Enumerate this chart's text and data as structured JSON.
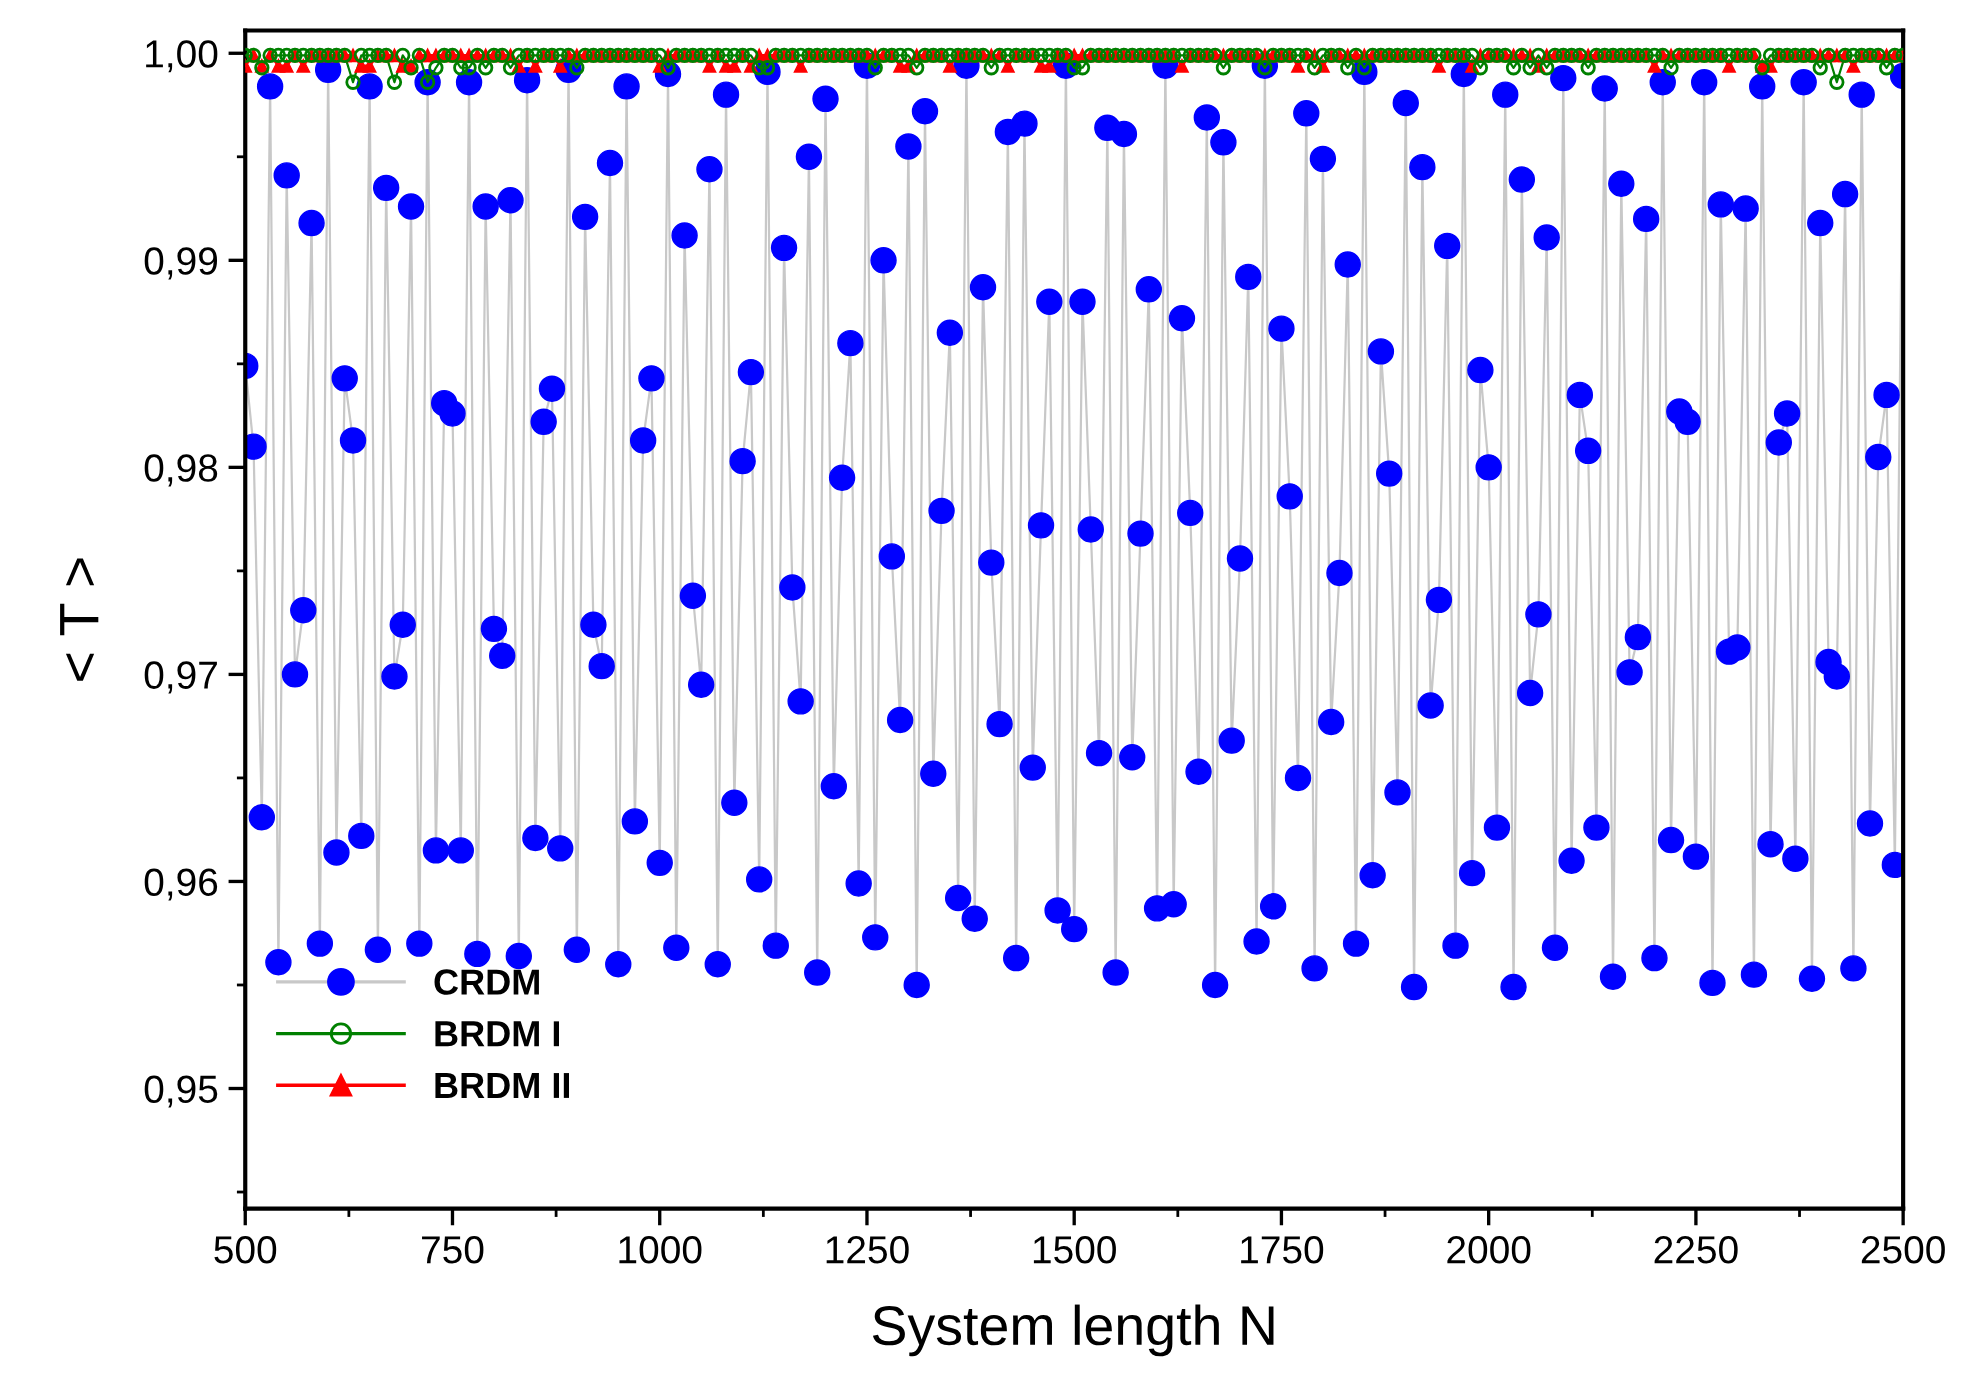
{
  "chart_data": {
    "type": "line",
    "xlabel": "System length N",
    "ylabel": "< T >",
    "x": [
      500,
      510,
      520,
      530,
      540,
      550,
      560,
      570,
      580,
      590,
      600,
      610,
      620,
      630,
      640,
      650,
      660,
      670,
      680,
      690,
      700,
      710,
      720,
      730,
      740,
      750,
      760,
      770,
      780,
      790,
      800,
      810,
      820,
      830,
      840,
      850,
      860,
      870,
      880,
      890,
      900,
      910,
      920,
      930,
      940,
      950,
      960,
      970,
      980,
      990,
      1000,
      1010,
      1020,
      1030,
      1040,
      1050,
      1060,
      1070,
      1080,
      1090,
      1100,
      1110,
      1120,
      1130,
      1140,
      1150,
      1160,
      1170,
      1180,
      1190,
      1200,
      1210,
      1220,
      1230,
      1240,
      1250,
      1260,
      1270,
      1280,
      1290,
      1300,
      1310,
      1320,
      1330,
      1340,
      1350,
      1360,
      1370,
      1380,
      1390,
      1400,
      1410,
      1420,
      1430,
      1440,
      1450,
      1460,
      1470,
      1480,
      1490,
      1500,
      1510,
      1520,
      1530,
      1540,
      1550,
      1560,
      1570,
      1580,
      1590,
      1600,
      1610,
      1620,
      1630,
      1640,
      1650,
      1660,
      1670,
      1680,
      1690,
      1700,
      1710,
      1720,
      1730,
      1740,
      1750,
      1760,
      1770,
      1780,
      1790,
      1800,
      1810,
      1820,
      1830,
      1840,
      1850,
      1860,
      1870,
      1880,
      1890,
      1900,
      1910,
      1920,
      1930,
      1940,
      1950,
      1960,
      1970,
      1980,
      1990,
      2000,
      2010,
      2020,
      2030,
      2040,
      2050,
      2060,
      2070,
      2080,
      2090,
      2100,
      2110,
      2120,
      2130,
      2140,
      2150,
      2160,
      2170,
      2180,
      2190,
      2200,
      2210,
      2220,
      2230,
      2240,
      2250,
      2260,
      2270,
      2280,
      2290,
      2300,
      2310,
      2320,
      2330,
      2340,
      2350,
      2360,
      2370,
      2380,
      2390,
      2400,
      2410,
      2420,
      2430,
      2440,
      2450,
      2460,
      2470,
      2480,
      2490,
      2500
    ],
    "xlim": [
      500,
      2500
    ],
    "xticks": [
      500,
      750,
      1000,
      1250,
      1500,
      1750,
      2000,
      2250,
      2500
    ],
    "ylim": [
      0.9442,
      1.0011
    ],
    "yticks": [
      {
        "value": 0.95,
        "label": "0,95"
      },
      {
        "value": 0.96,
        "label": "0,96"
      },
      {
        "value": 0.97,
        "label": "0,97"
      },
      {
        "value": 0.98,
        "label": "0,98"
      },
      {
        "value": 0.99,
        "label": "0,99"
      },
      {
        "value": 1.0,
        "label": "1,00"
      }
    ],
    "legend": "bottom left",
    "series": [
      {
        "name": "CRDM",
        "color": "#0000ff",
        "marker": "circle",
        "values": [
          0.9849,
          0.981,
          0.9631,
          0.9984,
          0.9561,
          0.9941,
          0.97,
          0.9731,
          0.9918,
          0.957,
          0.9992,
          0.9614,
          0.9843,
          0.9813,
          0.9622,
          0.9984,
          0.9567,
          0.9935,
          0.9699,
          0.9724,
          0.9926,
          0.957,
          0.9986,
          0.9615,
          0.9831,
          0.9826,
          0.9615,
          0.9986,
          0.9565,
          0.9926,
          0.9722,
          0.9709,
          0.9929,
          0.9564,
          0.9987,
          0.9621,
          0.9822,
          0.9838,
          0.9616,
          0.9992,
          0.9567,
          0.9921,
          0.9724,
          0.9704,
          0.9947,
          0.956,
          0.9984,
          0.9629,
          0.9813,
          0.9843,
          0.9609,
          0.999,
          0.9568,
          0.9912,
          0.9738,
          0.9695,
          0.9944,
          0.956,
          0.998,
          0.9638,
          0.9803,
          0.9846,
          0.9601,
          0.9991,
          0.9569,
          0.9906,
          0.9742,
          0.9687,
          0.995,
          0.9556,
          0.9978,
          0.9646,
          0.9795,
          0.986,
          0.9599,
          0.9994,
          0.9573,
          0.99,
          0.9757,
          0.9678,
          0.9955,
          0.955,
          0.9972,
          0.9652,
          0.9779,
          0.9865,
          0.9592,
          0.9994,
          0.9582,
          0.9887,
          0.9754,
          0.9676,
          0.9962,
          0.9563,
          0.9966,
          0.9655,
          0.9772,
          0.988,
          0.9586,
          0.9994,
          0.9577,
          0.988,
          0.977,
          0.9662,
          0.9964,
          0.9556,
          0.9961,
          0.966,
          0.9768,
          0.9886,
          0.9587,
          0.9994,
          0.9589,
          0.9872,
          0.9778,
          0.9653,
          0.9969,
          0.955,
          0.9957,
          0.9668,
          0.9756,
          0.9892,
          0.9571,
          0.9994,
          0.9588,
          0.9867,
          0.9786,
          0.965,
          0.9971,
          0.9558,
          0.9949,
          0.9677,
          0.9749,
          0.9898,
          0.957,
          0.9991,
          0.9603,
          0.9856,
          0.9797,
          0.9643,
          0.9976,
          0.9549,
          0.9945,
          0.9685,
          0.9736,
          0.9907,
          0.9569,
          0.999,
          0.9604,
          0.9847,
          0.98,
          0.9626,
          0.998,
          0.9549,
          0.9939,
          0.9691,
          0.9729,
          0.9911,
          0.9568,
          0.9988,
          0.961,
          0.9835,
          0.9808,
          0.9626,
          0.9983,
          0.9554,
          0.9937,
          0.9701,
          0.9718,
          0.992,
          0.9563,
          0.9986,
          0.962,
          0.9827,
          0.9822,
          0.9612,
          0.9986,
          0.9551,
          0.9927,
          0.9711,
          0.9713,
          0.9925,
          0.9555,
          0.9984,
          0.9618,
          0.9812,
          0.9826,
          0.9611,
          0.9986,
          0.9553,
          0.9918,
          0.9706,
          0.9699,
          0.9932,
          0.9558,
          0.998,
          0.9628,
          0.9805,
          0.9835,
          0.9608,
          0.9989
        ]
      },
      {
        "name": "BRDM I",
        "color": "#008000",
        "marker": "open circle",
        "values": [
          0.9999,
          0.9999,
          0.9993,
          0.9999,
          0.9999,
          0.9999,
          0.9999,
          0.9999,
          0.9999,
          0.9999,
          0.9999,
          0.9999,
          0.9999,
          0.9986,
          0.9999,
          0.9999,
          0.9999,
          0.9999,
          0.9986,
          0.9999,
          0.9993,
          0.9999,
          0.9986,
          0.9993,
          0.9999,
          0.9999,
          0.9993,
          0.9993,
          0.9999,
          0.9993,
          0.9999,
          0.9999,
          0.9993,
          0.9999,
          0.9999,
          0.9999,
          0.9999,
          0.9999,
          0.9999,
          0.9999,
          0.9993,
          0.9999,
          0.9999,
          0.9999,
          0.9999,
          0.9999,
          0.9999,
          0.9999,
          0.9999,
          0.9999,
          0.9999,
          0.9993,
          0.9999,
          0.9999,
          0.9999,
          0.9999,
          0.9999,
          0.9999,
          0.9999,
          0.9999,
          0.9999,
          0.9999,
          0.9993,
          0.9993,
          0.9999,
          0.9999,
          0.9999,
          0.9999,
          0.9999,
          0.9999,
          0.9999,
          0.9999,
          0.9999,
          0.9999,
          0.9999,
          0.9999,
          0.9993,
          0.9999,
          0.9999,
          0.9999,
          0.9999,
          0.9993,
          0.9999,
          0.9999,
          0.9999,
          0.9999,
          0.9999,
          0.9999,
          0.9999,
          0.9999,
          0.9993,
          0.9999,
          0.9999,
          0.9999,
          0.9999,
          0.9999,
          0.9999,
          0.9999,
          0.9999,
          0.9999,
          0.9993,
          0.9993,
          0.9999,
          0.9999,
          0.9999,
          0.9999,
          0.9999,
          0.9999,
          0.9999,
          0.9999,
          0.9999,
          0.9999,
          0.9999,
          0.9999,
          0.9999,
          0.9999,
          0.9999,
          0.9999,
          0.9993,
          0.9999,
          0.9999,
          0.9999,
          0.9999,
          0.9993,
          0.9999,
          0.9999,
          0.9999,
          0.9999,
          0.9999,
          0.9993,
          0.9999,
          0.9999,
          0.9999,
          0.9993,
          0.9999,
          0.9993,
          0.9999,
          0.9999,
          0.9999,
          0.9999,
          0.9999,
          0.9999,
          0.9999,
          0.9999,
          0.9999,
          0.9999,
          0.9999,
          0.9999,
          0.9999,
          0.9993,
          0.9999,
          0.9999,
          0.9999,
          0.9993,
          0.9999,
          0.9993,
          0.9999,
          0.9993,
          0.9999,
          0.9999,
          0.9999,
          0.9999,
          0.9993,
          0.9999,
          0.9999,
          0.9999,
          0.9999,
          0.9999,
          0.9999,
          0.9999,
          0.9999,
          0.9999,
          0.9993,
          0.9999,
          0.9999,
          0.9999,
          0.9999,
          0.9999,
          0.9999,
          0.9999,
          0.9999,
          0.9999,
          0.9999,
          0.9993,
          0.9999,
          0.9999,
          0.9999,
          0.9999,
          0.9999,
          0.9999,
          0.9993,
          0.9999,
          0.9986,
          0.9999,
          0.9999,
          0.9999,
          0.9999,
          0.9999,
          0.9993,
          0.9999,
          0.9999
        ]
      },
      {
        "name": "BRDM II",
        "color": "#ff0000",
        "marker": "triangle",
        "values": [
          0.9994,
          0.9999,
          0.9994,
          0.9999,
          0.9994,
          0.9994,
          0.9999,
          0.9994,
          0.9999,
          0.9999,
          0.9999,
          0.9999,
          0.9999,
          0.9999,
          0.9994,
          0.9994,
          0.9999,
          0.9999,
          0.9999,
          0.9994,
          0.9994,
          0.9999,
          0.9999,
          0.9999,
          0.9999,
          0.9999,
          0.9999,
          0.9999,
          0.9999,
          0.9999,
          0.9999,
          0.9999,
          0.9999,
          0.9994,
          0.9999,
          0.9994,
          0.9999,
          0.9999,
          0.9994,
          0.9999,
          0.9999,
          0.9999,
          0.9999,
          0.9999,
          0.9999,
          0.9999,
          0.9999,
          0.9999,
          0.9999,
          0.9999,
          0.9994,
          0.9999,
          0.9999,
          0.9999,
          0.9999,
          0.9999,
          0.9994,
          0.9999,
          0.9994,
          0.9994,
          0.9999,
          0.9994,
          0.9999,
          0.9999,
          0.9999,
          0.9999,
          0.9999,
          0.9994,
          0.9999,
          0.9999,
          0.9999,
          0.9999,
          0.9999,
          0.9999,
          0.9999,
          0.9999,
          0.9999,
          0.9999,
          0.9999,
          0.9994,
          0.9994,
          0.9999,
          0.9999,
          0.9999,
          0.9999,
          0.9994,
          0.9999,
          0.9999,
          0.9999,
          0.9999,
          0.9999,
          0.9999,
          0.9994,
          0.9999,
          0.9999,
          0.9999,
          0.9994,
          0.9994,
          0.9999,
          0.9999,
          0.9999,
          0.9999,
          0.9999,
          0.9999,
          0.9999,
          0.9999,
          0.9999,
          0.9999,
          0.9999,
          0.9999,
          0.9999,
          0.9999,
          0.9999,
          0.9994,
          0.9999,
          0.9999,
          0.9999,
          0.9999,
          0.9999,
          0.9999,
          0.9999,
          0.9999,
          0.9999,
          0.9999,
          0.9999,
          0.9999,
          0.9999,
          0.9994,
          0.9999,
          0.9999,
          0.9994,
          0.9999,
          0.9999,
          0.9999,
          0.9999,
          0.9999,
          0.9999,
          0.9999,
          0.9999,
          0.9999,
          0.9999,
          0.9999,
          0.9999,
          0.9999,
          0.9994,
          0.9999,
          0.9999,
          0.9999,
          0.9994,
          0.9999,
          0.9999,
          0.9999,
          0.9999,
          0.9999,
          0.9999,
          0.9999,
          0.9994,
          0.9999,
          0.9999,
          0.9999,
          0.9999,
          0.9999,
          0.9999,
          0.9999,
          0.9999,
          0.9999,
          0.9999,
          0.9999,
          0.9999,
          0.9999,
          0.9994,
          0.9999,
          0.9999,
          0.9999,
          0.9999,
          0.9999,
          0.9999,
          0.9999,
          0.9999,
          0.9994,
          0.9999,
          0.9999,
          0.9999,
          0.9994,
          0.9994,
          0.9999,
          0.9999,
          0.9999,
          0.9999,
          0.9999,
          0.9999,
          0.9999,
          0.9999,
          0.9999,
          0.9994,
          0.9999,
          0.9999,
          0.9999,
          0.9999,
          0.9999,
          0.9999
        ]
      }
    ]
  }
}
